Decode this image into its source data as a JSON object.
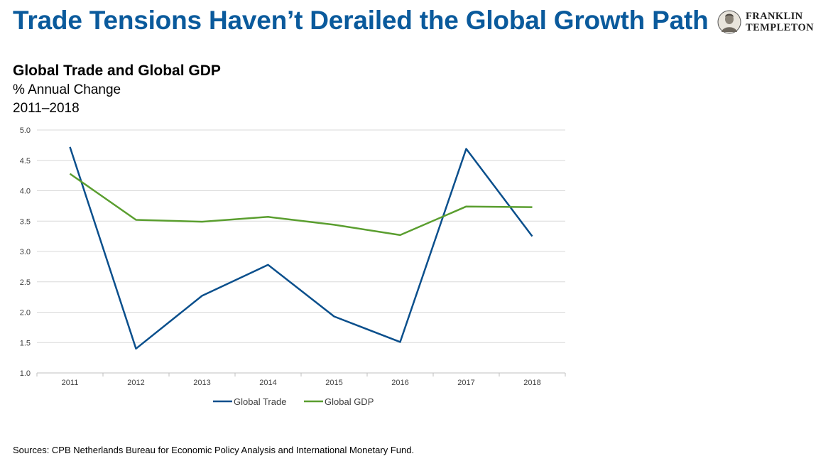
{
  "headline": "Trade Tensions Haven’t Derailed the Global Growth Path",
  "logo": {
    "line1": "FRANKLIN",
    "line2": "TEMPLETON",
    "icon": "franklin-portrait-icon"
  },
  "chart_data": {
    "type": "line",
    "title": "Global Trade and Global GDP",
    "subtitle": "% Annual Change",
    "period": "2011–2018",
    "categories": [
      "2011",
      "2012",
      "2013",
      "2014",
      "2015",
      "2016",
      "2017",
      "2018"
    ],
    "ylim": [
      1.0,
      5.0
    ],
    "yticks": [
      "5.0",
      "4.5",
      "4.0",
      "3.5",
      "3.0",
      "2.5",
      "2.0",
      "1.5",
      "1.0"
    ],
    "grid": true,
    "legend_position": "bottom",
    "series": [
      {
        "name": "Global Trade",
        "color": "#0a4f8c",
        "values": [
          4.72,
          1.4,
          2.27,
          2.78,
          1.93,
          1.51,
          4.69,
          3.25
        ]
      },
      {
        "name": "Global GDP",
        "color": "#5a9e2f",
        "values": [
          4.28,
          3.52,
          3.49,
          3.57,
          3.44,
          3.27,
          3.74,
          3.73
        ]
      }
    ]
  },
  "source": "Sources: CPB Netherlands Bureau for Economic Policy Analysis and International Monetary Fund."
}
